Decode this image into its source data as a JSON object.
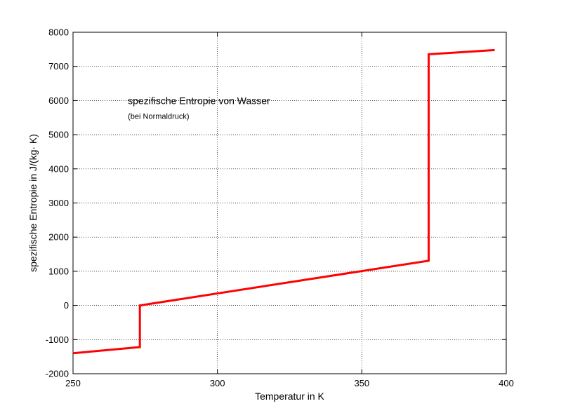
{
  "chart_data": {
    "type": "line",
    "title": "",
    "xlabel": "Temperatur in K",
    "ylabel": "spezifische Entropie in J/(kg· K)",
    "xlim": [
      250,
      400
    ],
    "ylim": [
      -2000,
      8000
    ],
    "xticks": [
      250,
      300,
      350,
      400
    ],
    "yticks": [
      -2000,
      -1000,
      0,
      1000,
      2000,
      3000,
      4000,
      5000,
      6000,
      7000,
      8000
    ],
    "grid": true,
    "series": [
      {
        "color": "#ff0000",
        "x": [
          250,
          273.15,
          273.15,
          373.15,
          373.15,
          396
        ],
        "y": [
          -1400,
          -1220,
          0,
          1310,
          7355,
          7480
        ]
      }
    ],
    "annotations": [
      {
        "text": "spezifische Entropie von Wasser",
        "x": 269,
        "y": 5900,
        "style": "main"
      },
      {
        "text": "(bei Normaldruck)",
        "x": 269,
        "y": 5460,
        "style": "sub"
      }
    ]
  }
}
